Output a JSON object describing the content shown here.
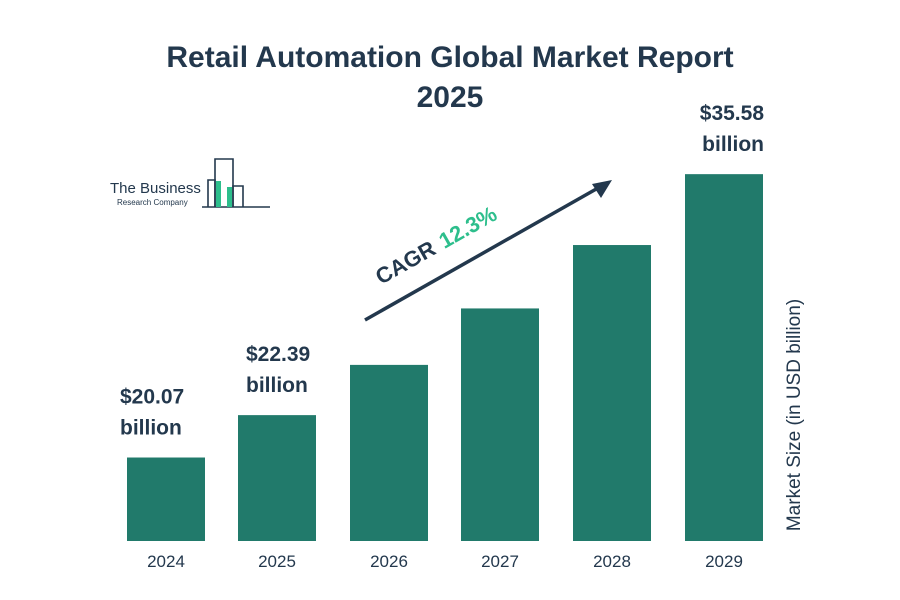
{
  "chart_data": {
    "type": "bar",
    "title_lines": [
      "Retail Automation Global Market Report",
      "2025"
    ],
    "categories": [
      "2024",
      "2025",
      "2026",
      "2027",
      "2028",
      "2029"
    ],
    "values": [
      20.07,
      22.39,
      25.14,
      28.23,
      31.7,
      35.58
    ],
    "data_labels": [
      {
        "index": 0,
        "line1": "$20.07",
        "line2": "billion"
      },
      {
        "index": 1,
        "line1": "$22.39",
        "line2": "billion"
      },
      {
        "index": 5,
        "line1": "$35.58",
        "line2": "billion"
      }
    ],
    "ylabel": "Market Size (in USD billion)",
    "ylim": [
      15.5,
      36.3
    ],
    "annotation": {
      "prefix": "CAGR",
      "value": "12.3%"
    },
    "grid": false,
    "legend": "none"
  },
  "brand": {
    "line1": "The Business",
    "line2": "Research Company"
  },
  "colors": {
    "bar": "#217a6b",
    "text": "#23384d",
    "accent": "#2dbe8c",
    "logo_fill": "#2dbe8c"
  }
}
